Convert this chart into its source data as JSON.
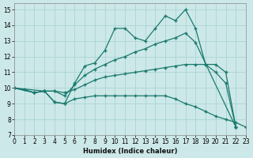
{
  "xlabel": "Humidex (Indice chaleur)",
  "xlim": [
    0,
    23
  ],
  "ylim": [
    7,
    15.4
  ],
  "xticks": [
    0,
    1,
    2,
    3,
    4,
    5,
    6,
    7,
    8,
    9,
    10,
    11,
    12,
    13,
    14,
    15,
    16,
    17,
    18,
    19,
    20,
    21,
    22,
    23
  ],
  "yticks": [
    7,
    8,
    9,
    10,
    11,
    12,
    13,
    14,
    15
  ],
  "background_color": "#cde8e8",
  "grid_color": "#aad4d4",
  "line_color": "#1a7a6e",
  "lines": [
    {
      "x": [
        0,
        1,
        2,
        3,
        4,
        5,
        6,
        7,
        8,
        9,
        10,
        11,
        12,
        13,
        14,
        15,
        16,
        17,
        18,
        19,
        20,
        21,
        22
      ],
      "y": [
        10.0,
        9.9,
        9.7,
        9.8,
        9.1,
        9.0,
        10.3,
        11.4,
        11.6,
        12.4,
        13.8,
        13.8,
        13.2,
        13.0,
        13.8,
        14.6,
        14.3,
        15.0,
        13.8,
        11.5,
        11.0,
        10.3,
        7.5
      ]
    },
    {
      "x": [
        0,
        2,
        3,
        4,
        5,
        6,
        7,
        8,
        9,
        10,
        11,
        12,
        13,
        14,
        15,
        16,
        17,
        18,
        22
      ],
      "y": [
        10.0,
        9.7,
        9.8,
        9.8,
        9.5,
        10.2,
        10.8,
        11.2,
        11.5,
        11.8,
        12.0,
        12.3,
        12.5,
        12.8,
        13.0,
        13.2,
        13.5,
        12.9,
        7.5
      ]
    },
    {
      "x": [
        0,
        3,
        4,
        5,
        6,
        7,
        8,
        9,
        10,
        11,
        12,
        13,
        14,
        15,
        16,
        17,
        18,
        19,
        20,
        21,
        22
      ],
      "y": [
        10.0,
        9.8,
        9.8,
        9.7,
        9.9,
        10.2,
        10.5,
        10.7,
        10.8,
        10.9,
        11.0,
        11.1,
        11.2,
        11.3,
        11.4,
        11.5,
        11.5,
        11.5,
        11.5,
        11.0,
        7.5
      ]
    },
    {
      "x": [
        0,
        2,
        3,
        4,
        5,
        6,
        7,
        8,
        9,
        10,
        11,
        12,
        13,
        14,
        15,
        16,
        17,
        18,
        19,
        20,
        21,
        22,
        23
      ],
      "y": [
        10.0,
        9.7,
        9.8,
        9.1,
        9.0,
        9.3,
        9.4,
        9.5,
        9.5,
        9.5,
        9.5,
        9.5,
        9.5,
        9.5,
        9.5,
        9.3,
        9.0,
        8.8,
        8.5,
        8.2,
        8.0,
        7.8,
        7.5
      ]
    }
  ]
}
